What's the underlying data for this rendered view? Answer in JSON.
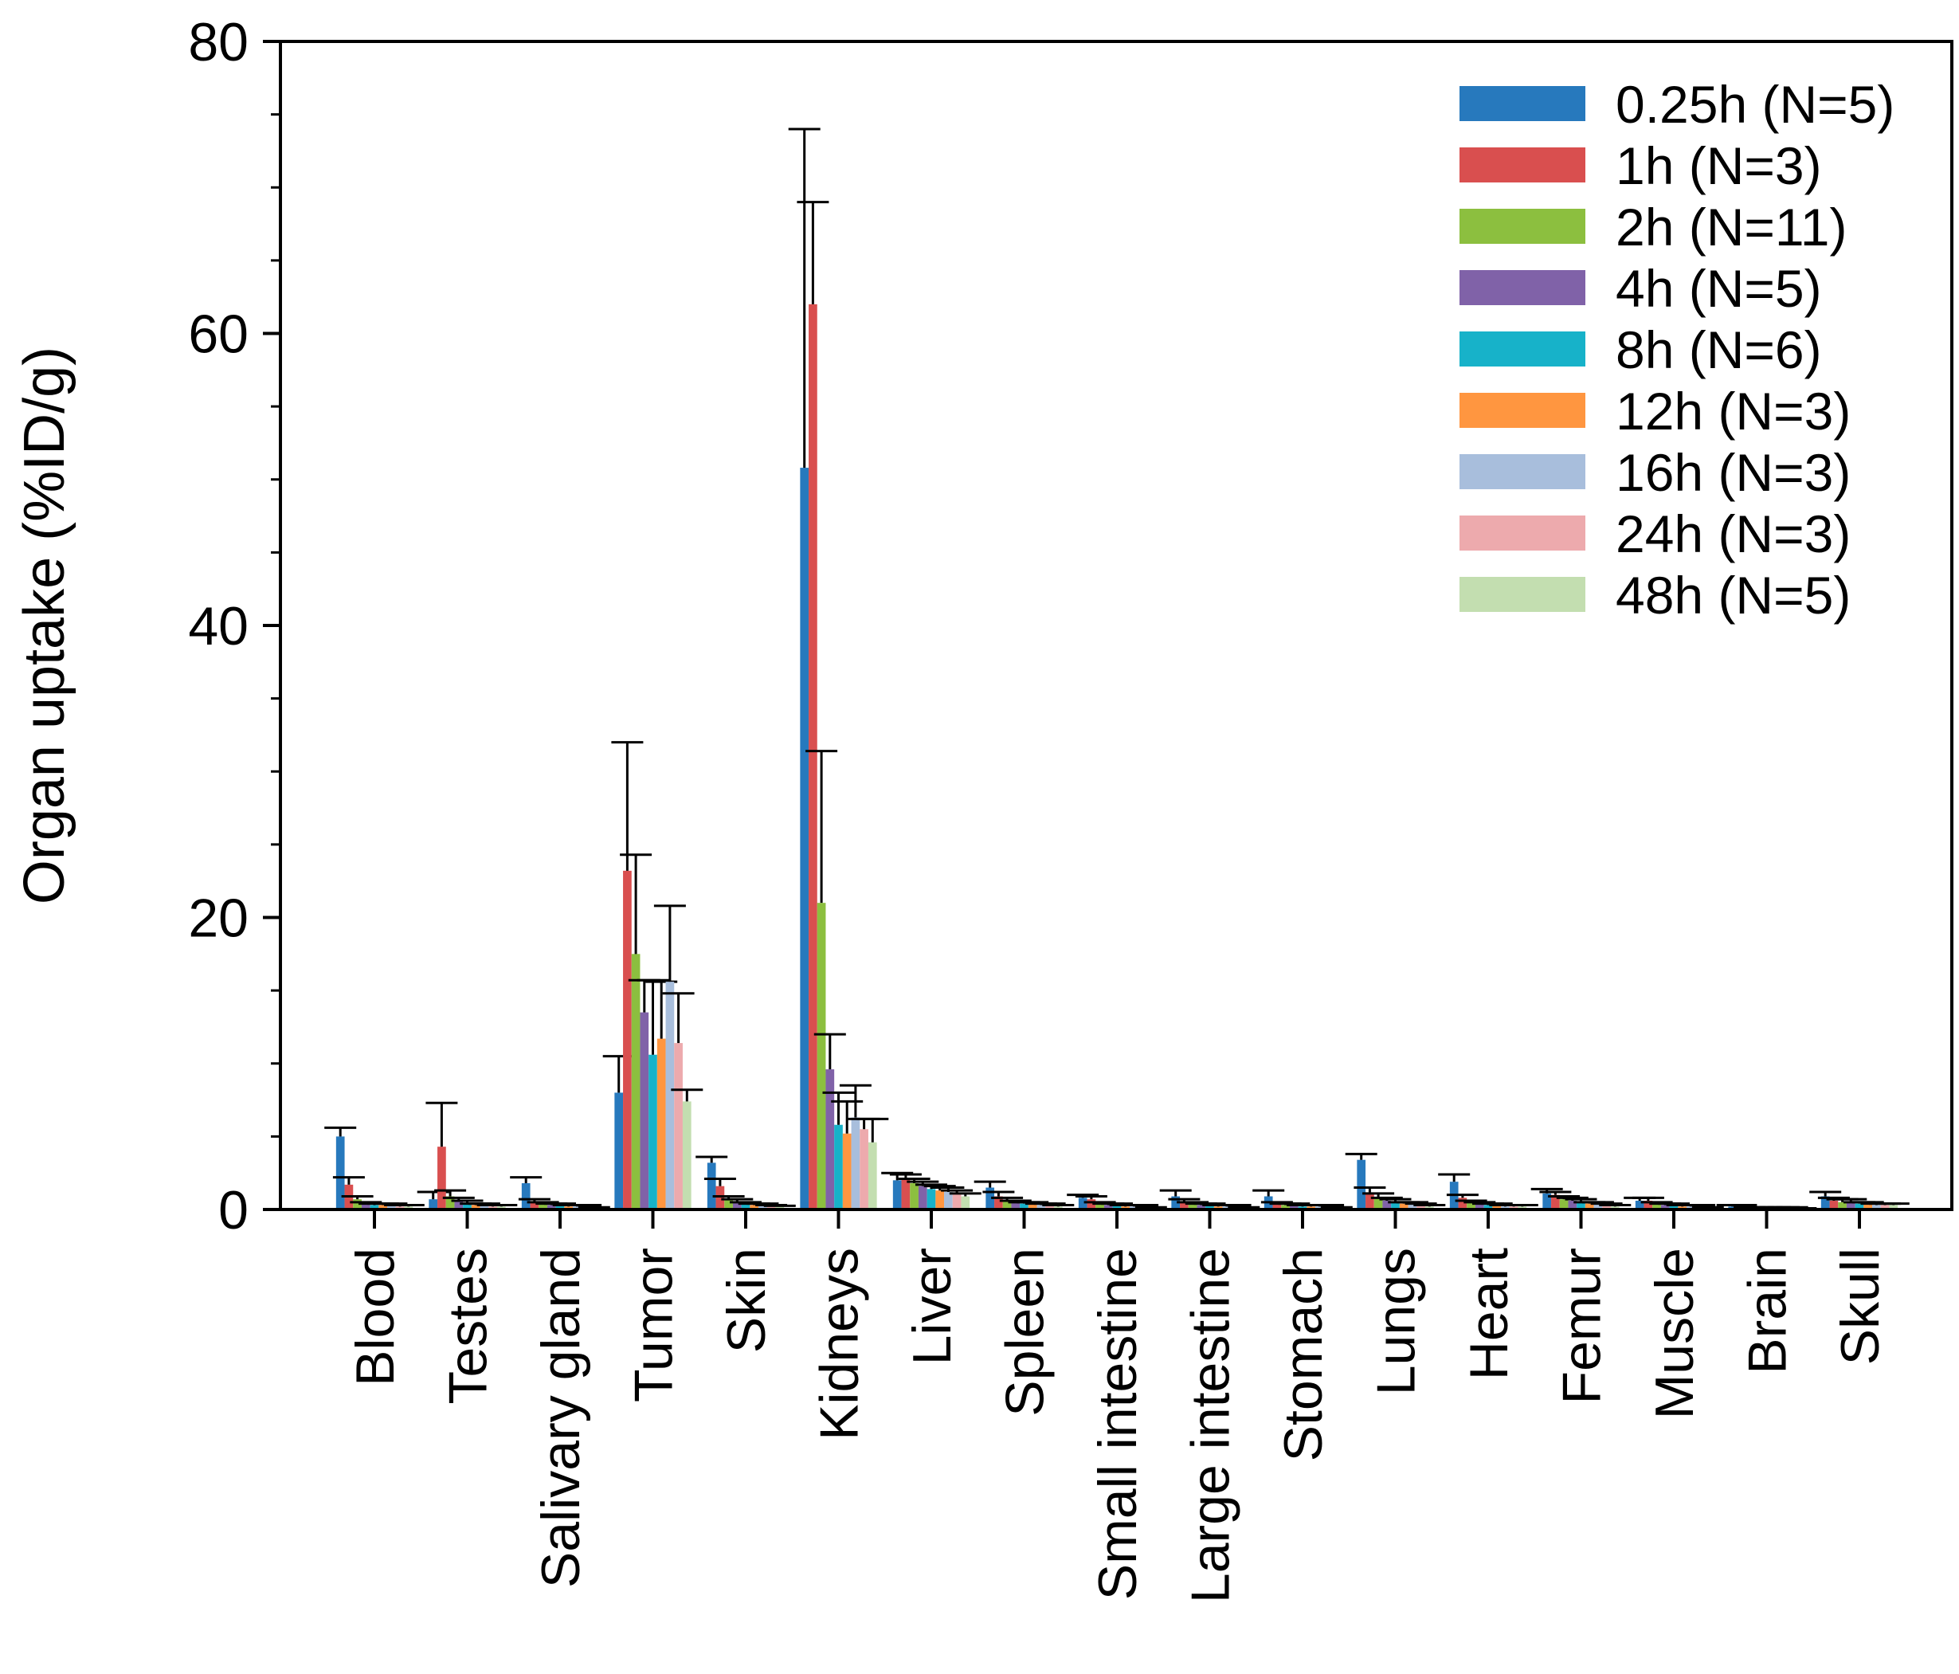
{
  "chart_data": {
    "type": "bar",
    "title": "",
    "xlabel": "",
    "ylabel": "Organ uptake (%ID/g)",
    "ylim": [
      0,
      80
    ],
    "yticks": [
      "0",
      "20",
      "40",
      "60",
      "80"
    ],
    "grid": false,
    "legend_position": "top-right",
    "categories": [
      "Blood",
      "Testes",
      "Salivary gland",
      "Tumor",
      "Skin",
      "Kidneys",
      "Liver",
      "Spleen",
      "Small intestine",
      "Large intestine",
      "Stomach",
      "Lungs",
      "Heart",
      "Femur",
      "Muscle",
      "Brain",
      "Skull"
    ],
    "series": [
      {
        "name": "0.25h (N=5)",
        "color": "#2779bd",
        "values": [
          5.0,
          0.7,
          1.8,
          8.0,
          3.2,
          50.8,
          2.0,
          1.5,
          0.8,
          0.9,
          0.9,
          3.4,
          1.9,
          1.1,
          0.6,
          0.2,
          0.9
        ],
        "errors": [
          0.6,
          0.5,
          0.4,
          2.5,
          0.4,
          23.2,
          0.5,
          0.4,
          0.2,
          0.4,
          0.4,
          0.4,
          0.5,
          0.3,
          0.2,
          0.1,
          0.3
        ]
      },
      {
        "name": "1h (N=3)",
        "color": "#d94f4f",
        "values": [
          1.7,
          4.3,
          0.5,
          23.2,
          1.6,
          62.0,
          2.1,
          0.9,
          0.7,
          0.5,
          0.4,
          1.1,
          0.8,
          1.0,
          0.6,
          0.2,
          0.6
        ],
        "errors": [
          0.5,
          3.0,
          0.2,
          8.8,
          0.5,
          7.0,
          0.3,
          0.3,
          0.2,
          0.2,
          0.1,
          0.4,
          0.2,
          0.2,
          0.2,
          0.1,
          0.2
        ]
      },
      {
        "name": "2h (N=11)",
        "color": "#8cbf3f",
        "values": [
          0.7,
          0.9,
          0.4,
          17.5,
          0.7,
          21.0,
          1.8,
          0.6,
          0.4,
          0.4,
          0.3,
          0.8,
          0.5,
          0.7,
          0.4,
          0.1,
          0.5
        ],
        "errors": [
          0.2,
          0.4,
          0.1,
          6.8,
          0.2,
          10.4,
          0.3,
          0.2,
          0.1,
          0.1,
          0.1,
          0.3,
          0.1,
          0.2,
          0.1,
          0.05,
          0.2
        ]
      },
      {
        "name": "4h (N=5)",
        "color": "#8062a8",
        "values": [
          0.4,
          0.6,
          0.3,
          13.5,
          0.5,
          9.6,
          1.6,
          0.5,
          0.3,
          0.3,
          0.3,
          0.6,
          0.4,
          0.6,
          0.3,
          0.1,
          0.5
        ],
        "errors": [
          0.1,
          0.2,
          0.1,
          2.2,
          0.2,
          2.4,
          0.3,
          0.1,
          0.1,
          0.1,
          0.1,
          0.2,
          0.1,
          0.2,
          0.1,
          0.05,
          0.2
        ]
      },
      {
        "name": "8h (N=6)",
        "color": "#17b2c9",
        "values": [
          0.3,
          0.4,
          0.3,
          10.6,
          0.4,
          5.8,
          1.4,
          0.4,
          0.3,
          0.3,
          0.2,
          0.5,
          0.3,
          0.5,
          0.3,
          0.1,
          0.4
        ],
        "errors": [
          0.1,
          0.2,
          0.1,
          5.1,
          0.1,
          2.2,
          0.3,
          0.1,
          0.1,
          0.1,
          0.1,
          0.2,
          0.1,
          0.2,
          0.1,
          0.05,
          0.1
        ]
      },
      {
        "name": "12h (N=3)",
        "color": "#ff9640",
        "values": [
          0.3,
          0.3,
          0.2,
          11.7,
          0.3,
          5.2,
          1.3,
          0.4,
          0.2,
          0.2,
          0.2,
          0.4,
          0.3,
          0.4,
          0.2,
          0.1,
          0.4
        ],
        "errors": [
          0.1,
          0.1,
          0.1,
          3.9,
          0.1,
          2.2,
          0.3,
          0.1,
          0.1,
          0.1,
          0.1,
          0.1,
          0.1,
          0.1,
          0.1,
          0.05,
          0.1
        ]
      },
      {
        "name": "16h (N=3)",
        "color": "#a8bedc",
        "values": [
          0.3,
          0.3,
          0.2,
          15.6,
          0.3,
          6.3,
          1.2,
          0.3,
          0.2,
          0.2,
          0.2,
          0.4,
          0.2,
          0.4,
          0.2,
          0.1,
          0.3
        ],
        "errors": [
          0.1,
          0.1,
          0.1,
          5.2,
          0.1,
          2.2,
          0.3,
          0.1,
          0.1,
          0.1,
          0.1,
          0.1,
          0.1,
          0.1,
          0.1,
          0.05,
          0.1
        ]
      },
      {
        "name": "24h (N=3)",
        "color": "#edaaad",
        "values": [
          0.2,
          0.2,
          0.2,
          11.4,
          0.2,
          5.5,
          1.1,
          0.3,
          0.2,
          0.2,
          0.2,
          0.3,
          0.2,
          0.3,
          0.2,
          0.1,
          0.3
        ],
        "errors": [
          0.1,
          0.1,
          0.1,
          3.4,
          0.1,
          0.7,
          0.2,
          0.1,
          0.1,
          0.1,
          0.1,
          0.1,
          0.1,
          0.1,
          0.1,
          0.05,
          0.1
        ]
      },
      {
        "name": "48h (N=5)",
        "color": "#c3deb0",
        "values": [
          0.2,
          0.2,
          0.1,
          7.4,
          0.2,
          4.6,
          0.9,
          0.2,
          0.1,
          0.1,
          0.1,
          0.2,
          0.2,
          0.2,
          0.1,
          0.05,
          0.3
        ],
        "errors": [
          0.1,
          0.1,
          0.05,
          0.8,
          0.05,
          1.6,
          0.2,
          0.1,
          0.05,
          0.05,
          0.05,
          0.1,
          0.1,
          0.1,
          0.05,
          0.03,
          0.1
        ]
      }
    ]
  }
}
